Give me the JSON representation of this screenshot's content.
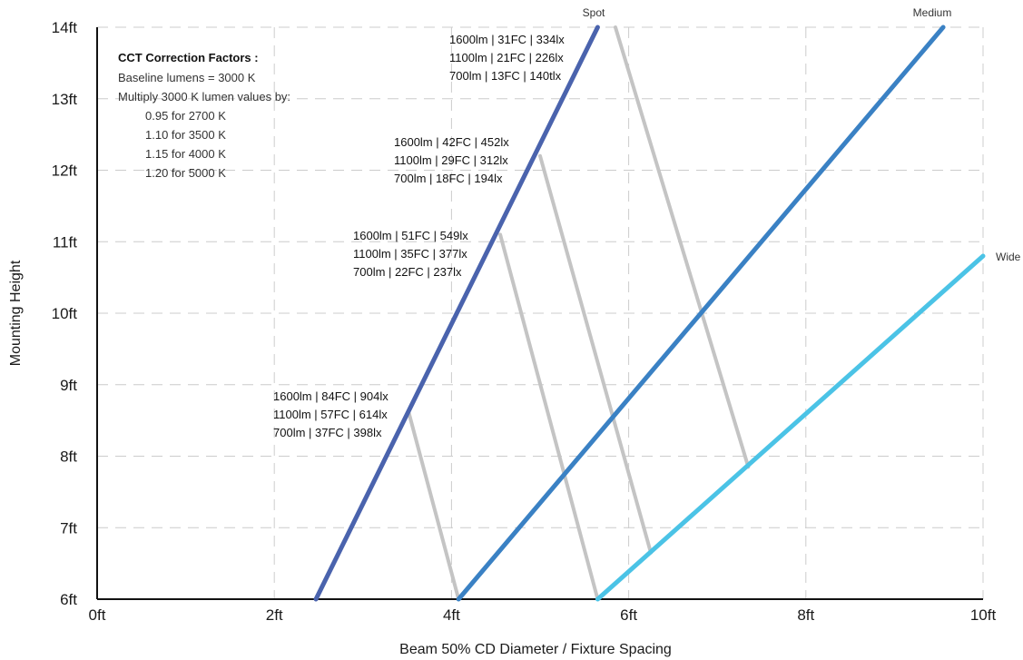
{
  "chart_data": {
    "type": "line",
    "xlabel": "Beam 50% CD Diameter / Fixture Spacing",
    "ylabel": "Mounting Height",
    "xlim": [
      0,
      10
    ],
    "ylim": [
      6,
      14
    ],
    "grid": true,
    "x_ticks": [
      {
        "value": 0,
        "label": "0ft"
      },
      {
        "value": 2,
        "label": "2ft"
      },
      {
        "value": 4,
        "label": "4ft"
      },
      {
        "value": 6,
        "label": "6ft"
      },
      {
        "value": 8,
        "label": "8ft"
      },
      {
        "value": 10,
        "label": "10ft"
      }
    ],
    "y_ticks": [
      {
        "value": 6,
        "label": "6ft"
      },
      {
        "value": 7,
        "label": "7ft"
      },
      {
        "value": 8,
        "label": "8ft"
      },
      {
        "value": 9,
        "label": "9ft"
      },
      {
        "value": 10,
        "label": "10ft"
      },
      {
        "value": 11,
        "label": "11ft"
      },
      {
        "value": 12,
        "label": "12ft"
      },
      {
        "value": 13,
        "label": "13ft"
      },
      {
        "value": 14,
        "label": "14ft"
      }
    ],
    "series": [
      {
        "name": "Spot",
        "color": "#4a63ad",
        "points": [
          [
            2.47,
            6
          ],
          [
            5.65,
            14
          ]
        ]
      },
      {
        "name": "Medium",
        "color": "#3a81c4",
        "points": [
          [
            4.08,
            6
          ],
          [
            9.55,
            14
          ]
        ]
      },
      {
        "name": "Wide",
        "color": "#4bc3e6",
        "points": [
          [
            5.65,
            6
          ],
          [
            10,
            10.8
          ]
        ]
      }
    ],
    "connectors": [
      {
        "points": [
          [
            3.52,
            8.6
          ],
          [
            4.08,
            6
          ]
        ]
      },
      {
        "points": [
          [
            4.55,
            11.1
          ],
          [
            5.65,
            6
          ]
        ]
      },
      {
        "points": [
          [
            5.0,
            12.2
          ],
          [
            6.25,
            6.65
          ]
        ]
      },
      {
        "points": [
          [
            5.85,
            14
          ],
          [
            7.35,
            7.85
          ]
        ]
      }
    ],
    "annotations": [
      {
        "lines": [
          "1600lm | 84FC | 904lx",
          "1100lm | 57FC | 614lx",
          "700lm | 37FC | 398lx"
        ]
      },
      {
        "lines": [
          "1600lm | 51FC | 549lx",
          "1100lm | 35FC | 377lx",
          "700lm | 22FC | 237lx"
        ]
      },
      {
        "lines": [
          "1600lm | 42FC | 452lx",
          "1100lm | 29FC | 312lx",
          "700lm | 18FC | 194lx"
        ]
      },
      {
        "lines": [
          "1600lm | 31FC | 334lx",
          "1100lm | 21FC | 226lx",
          "700lm | 13FC | 140tlx"
        ]
      }
    ],
    "cct_box": {
      "title": "CCT Correction Factors :",
      "lines": [
        "Baseline lumens = 3000 K",
        "Multiply 3000 K lumen values by:",
        "0.95 for 2700 K",
        "1.10 for 3500 K",
        "1.15 for 4000 K",
        "1.20 for 5000 K"
      ]
    }
  }
}
